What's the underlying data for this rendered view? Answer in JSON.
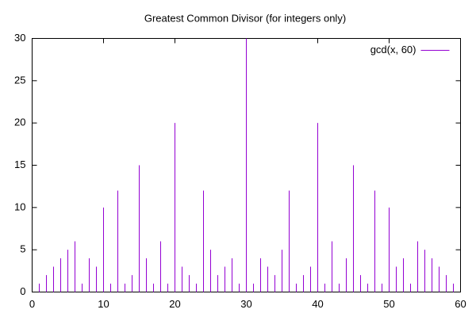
{
  "chart_data": {
    "type": "impulse",
    "title": "Greatest Common Divisor (for integers only)",
    "series": [
      {
        "name": "gcd(x, 60)",
        "color": "#9400d3",
        "x": [
          1,
          2,
          3,
          4,
          5,
          6,
          7,
          8,
          9,
          10,
          11,
          12,
          13,
          14,
          15,
          16,
          17,
          18,
          19,
          20,
          21,
          22,
          23,
          24,
          25,
          26,
          27,
          28,
          29,
          30,
          31,
          32,
          33,
          34,
          35,
          36,
          37,
          38,
          39,
          40,
          41,
          42,
          43,
          44,
          45,
          46,
          47,
          48,
          49,
          50,
          51,
          52,
          53,
          54,
          55,
          56,
          57,
          58,
          59
        ],
        "values": [
          1,
          2,
          3,
          4,
          5,
          6,
          1,
          4,
          3,
          10,
          1,
          12,
          1,
          2,
          15,
          4,
          1,
          6,
          1,
          20,
          3,
          2,
          1,
          12,
          5,
          2,
          3,
          4,
          1,
          30,
          1,
          4,
          3,
          2,
          5,
          12,
          1,
          2,
          3,
          20,
          1,
          6,
          1,
          4,
          15,
          2,
          1,
          12,
          1,
          10,
          3,
          4,
          1,
          6,
          5,
          4,
          3,
          2,
          1
        ]
      }
    ],
    "xlim": [
      0,
      60
    ],
    "xticks": [
      0,
      10,
      20,
      30,
      40,
      50,
      60
    ],
    "ylim": [
      0,
      30
    ],
    "yticks": [
      0,
      5,
      10,
      15,
      20,
      25,
      30
    ],
    "legend": "top-right"
  }
}
